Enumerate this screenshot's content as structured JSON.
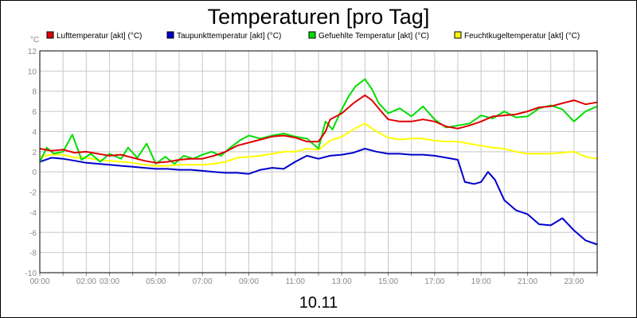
{
  "chart_data": {
    "type": "line",
    "title": "Temperaturen [pro Tag]",
    "y_unit_label": "°C",
    "xlabel": "10.11",
    "ylim": [
      -10,
      12
    ],
    "xlim_hours": [
      0,
      24
    ],
    "grid": true,
    "legend_position": "top",
    "y_ticks": [
      {
        "value": 12,
        "label": "12"
      },
      {
        "value": 10,
        "label": "10"
      },
      {
        "value": 8,
        "label": "8"
      },
      {
        "value": 6,
        "label": "6"
      },
      {
        "value": 4,
        "label": "4"
      },
      {
        "value": 2,
        "label": "2"
      },
      {
        "value": 0,
        "label": "0"
      },
      {
        "value": -2,
        "label": "-2"
      },
      {
        "value": -4,
        "label": "-4"
      },
      {
        "value": -6,
        "label": "-6"
      },
      {
        "value": -8,
        "label": "-8"
      },
      {
        "value": -10,
        "label": "-10"
      }
    ],
    "x_ticks": [
      {
        "hour": 0,
        "label": "00:00"
      },
      {
        "hour": 2,
        "label": "02:00"
      },
      {
        "hour": 3,
        "label": "03:00"
      },
      {
        "hour": 5,
        "label": "05:00"
      },
      {
        "hour": 7,
        "label": "07:00"
      },
      {
        "hour": 9,
        "label": "09:00"
      },
      {
        "hour": 11,
        "label": "11:00"
      },
      {
        "hour": 13,
        "label": "13:00"
      },
      {
        "hour": 15,
        "label": "15:00"
      },
      {
        "hour": 17,
        "label": "17:00"
      },
      {
        "hour": 19,
        "label": "19:00"
      },
      {
        "hour": 21,
        "label": "21:00"
      },
      {
        "hour": 23,
        "label": "23:00"
      }
    ],
    "series": [
      {
        "name": "Lufttemperatur [akt] (°C)",
        "color": "#e00000",
        "points": [
          [
            0,
            2.3
          ],
          [
            0.5,
            2.1
          ],
          [
            1,
            2.2
          ],
          [
            1.5,
            1.9
          ],
          [
            2,
            2.0
          ],
          [
            2.5,
            1.8
          ],
          [
            3,
            1.6
          ],
          [
            3.5,
            1.7
          ],
          [
            4,
            1.4
          ],
          [
            4.5,
            1.1
          ],
          [
            5,
            0.9
          ],
          [
            5.5,
            1.0
          ],
          [
            6,
            1.2
          ],
          [
            6.5,
            1.3
          ],
          [
            7,
            1.3
          ],
          [
            7.5,
            1.6
          ],
          [
            8,
            2.0
          ],
          [
            8.5,
            2.6
          ],
          [
            9,
            2.9
          ],
          [
            9.5,
            3.2
          ],
          [
            10,
            3.5
          ],
          [
            10.5,
            3.6
          ],
          [
            11,
            3.4
          ],
          [
            11.5,
            3.0
          ],
          [
            12,
            3.0
          ],
          [
            12.3,
            4.0
          ],
          [
            12.5,
            5.2
          ],
          [
            13,
            5.8
          ],
          [
            13.5,
            6.8
          ],
          [
            14,
            7.6
          ],
          [
            14.3,
            7.1
          ],
          [
            14.7,
            6.0
          ],
          [
            15,
            5.2
          ],
          [
            15.5,
            5.0
          ],
          [
            16,
            5.0
          ],
          [
            16.5,
            5.2
          ],
          [
            17,
            5.0
          ],
          [
            17.5,
            4.5
          ],
          [
            18,
            4.3
          ],
          [
            18.5,
            4.6
          ],
          [
            19,
            5.0
          ],
          [
            19.5,
            5.5
          ],
          [
            20,
            5.6
          ],
          [
            20.5,
            5.7
          ],
          [
            21,
            6.0
          ],
          [
            21.5,
            6.4
          ],
          [
            22,
            6.5
          ],
          [
            22.5,
            6.8
          ],
          [
            23,
            7.1
          ],
          [
            23.5,
            6.7
          ],
          [
            24,
            6.9
          ]
        ]
      },
      {
        "name": "Taupunkttemperatur [akt] (°C)",
        "color": "#0000cc",
        "points": [
          [
            0,
            1.0
          ],
          [
            0.5,
            1.4
          ],
          [
            1,
            1.3
          ],
          [
            1.5,
            1.1
          ],
          [
            2,
            0.9
          ],
          [
            2.5,
            0.8
          ],
          [
            3,
            0.7
          ],
          [
            3.5,
            0.6
          ],
          [
            4,
            0.5
          ],
          [
            4.5,
            0.4
          ],
          [
            5,
            0.3
          ],
          [
            5.5,
            0.3
          ],
          [
            6,
            0.2
          ],
          [
            6.5,
            0.2
          ],
          [
            7,
            0.1
          ],
          [
            7.5,
            0.0
          ],
          [
            8,
            -0.1
          ],
          [
            8.5,
            -0.1
          ],
          [
            9,
            -0.2
          ],
          [
            9.5,
            0.2
          ],
          [
            10,
            0.4
          ],
          [
            10.5,
            0.3
          ],
          [
            11,
            1.0
          ],
          [
            11.5,
            1.6
          ],
          [
            12,
            1.3
          ],
          [
            12.5,
            1.6
          ],
          [
            13,
            1.7
          ],
          [
            13.5,
            1.9
          ],
          [
            14,
            2.3
          ],
          [
            14.5,
            2.0
          ],
          [
            15,
            1.8
          ],
          [
            15.5,
            1.8
          ],
          [
            16,
            1.7
          ],
          [
            16.5,
            1.7
          ],
          [
            17,
            1.6
          ],
          [
            17.5,
            1.4
          ],
          [
            18,
            1.2
          ],
          [
            18.3,
            -1.0
          ],
          [
            18.7,
            -1.2
          ],
          [
            19,
            -1.0
          ],
          [
            19.3,
            0.0
          ],
          [
            19.6,
            -0.8
          ],
          [
            20,
            -2.8
          ],
          [
            20.5,
            -3.8
          ],
          [
            21,
            -4.2
          ],
          [
            21.5,
            -5.2
          ],
          [
            22,
            -5.3
          ],
          [
            22.5,
            -4.6
          ],
          [
            23,
            -5.8
          ],
          [
            23.5,
            -6.8
          ],
          [
            24,
            -7.2
          ]
        ]
      },
      {
        "name": "Gefuehlte Temperatur [akt] (°C)",
        "color": "#00dd00",
        "points": [
          [
            0,
            1.0
          ],
          [
            0.3,
            2.4
          ],
          [
            0.6,
            1.8
          ],
          [
            1,
            2.0
          ],
          [
            1.4,
            3.7
          ],
          [
            1.8,
            1.2
          ],
          [
            2.2,
            1.8
          ],
          [
            2.6,
            1.0
          ],
          [
            3,
            1.8
          ],
          [
            3.5,
            1.3
          ],
          [
            3.8,
            2.4
          ],
          [
            4.2,
            1.4
          ],
          [
            4.6,
            2.8
          ],
          [
            5,
            0.8
          ],
          [
            5.4,
            1.5
          ],
          [
            5.8,
            0.8
          ],
          [
            6.2,
            1.6
          ],
          [
            6.6,
            1.3
          ],
          [
            7,
            1.7
          ],
          [
            7.4,
            2.0
          ],
          [
            7.8,
            1.6
          ],
          [
            8.2,
            2.4
          ],
          [
            8.6,
            3.1
          ],
          [
            9,
            3.6
          ],
          [
            9.5,
            3.3
          ],
          [
            10,
            3.6
          ],
          [
            10.5,
            3.8
          ],
          [
            11,
            3.5
          ],
          [
            11.5,
            3.3
          ],
          [
            12,
            2.3
          ],
          [
            12.3,
            5.0
          ],
          [
            12.6,
            4.2
          ],
          [
            13,
            6.2
          ],
          [
            13.3,
            7.5
          ],
          [
            13.6,
            8.5
          ],
          [
            14,
            9.2
          ],
          [
            14.3,
            8.2
          ],
          [
            14.6,
            6.8
          ],
          [
            15,
            5.8
          ],
          [
            15.5,
            6.3
          ],
          [
            16,
            5.5
          ],
          [
            16.5,
            6.5
          ],
          [
            17,
            5.2
          ],
          [
            17.5,
            4.4
          ],
          [
            18,
            4.6
          ],
          [
            18.5,
            4.8
          ],
          [
            19,
            5.6
          ],
          [
            19.5,
            5.3
          ],
          [
            20,
            6.0
          ],
          [
            20.5,
            5.4
          ],
          [
            21,
            5.5
          ],
          [
            21.5,
            6.3
          ],
          [
            22,
            6.6
          ],
          [
            22.5,
            6.2
          ],
          [
            23,
            5.0
          ],
          [
            23.5,
            6.0
          ],
          [
            24,
            6.5
          ]
        ]
      },
      {
        "name": "Feuchtkugeltemperatur [akt] (°C)",
        "color": "#ffff00",
        "points": [
          [
            0,
            1.5
          ],
          [
            0.5,
            1.7
          ],
          [
            1,
            1.7
          ],
          [
            1.5,
            1.4
          ],
          [
            2,
            1.4
          ],
          [
            2.5,
            1.2
          ],
          [
            3,
            1.1
          ],
          [
            3.5,
            1.0
          ],
          [
            4,
            0.9
          ],
          [
            4.5,
            0.7
          ],
          [
            5,
            0.6
          ],
          [
            5.5,
            0.6
          ],
          [
            6,
            0.7
          ],
          [
            6.5,
            0.7
          ],
          [
            7,
            0.7
          ],
          [
            7.5,
            0.8
          ],
          [
            8,
            1.0
          ],
          [
            8.5,
            1.4
          ],
          [
            9,
            1.5
          ],
          [
            9.5,
            1.6
          ],
          [
            10,
            1.8
          ],
          [
            10.5,
            2.0
          ],
          [
            11,
            2.0
          ],
          [
            11.5,
            2.3
          ],
          [
            12,
            2.2
          ],
          [
            12.5,
            3.1
          ],
          [
            13,
            3.5
          ],
          [
            13.5,
            4.2
          ],
          [
            14,
            4.8
          ],
          [
            14.5,
            4.0
          ],
          [
            15,
            3.4
          ],
          [
            15.5,
            3.2
          ],
          [
            16,
            3.3
          ],
          [
            16.5,
            3.3
          ],
          [
            17,
            3.1
          ],
          [
            17.5,
            3.0
          ],
          [
            18,
            3.0
          ],
          [
            18.5,
            2.8
          ],
          [
            19,
            2.6
          ],
          [
            19.5,
            2.4
          ],
          [
            20,
            2.3
          ],
          [
            20.5,
            2.0
          ],
          [
            21,
            1.8
          ],
          [
            21.5,
            1.8
          ],
          [
            22,
            1.8
          ],
          [
            22.5,
            1.9
          ],
          [
            23,
            2.0
          ],
          [
            23.5,
            1.5
          ],
          [
            24,
            1.3
          ]
        ]
      }
    ]
  }
}
